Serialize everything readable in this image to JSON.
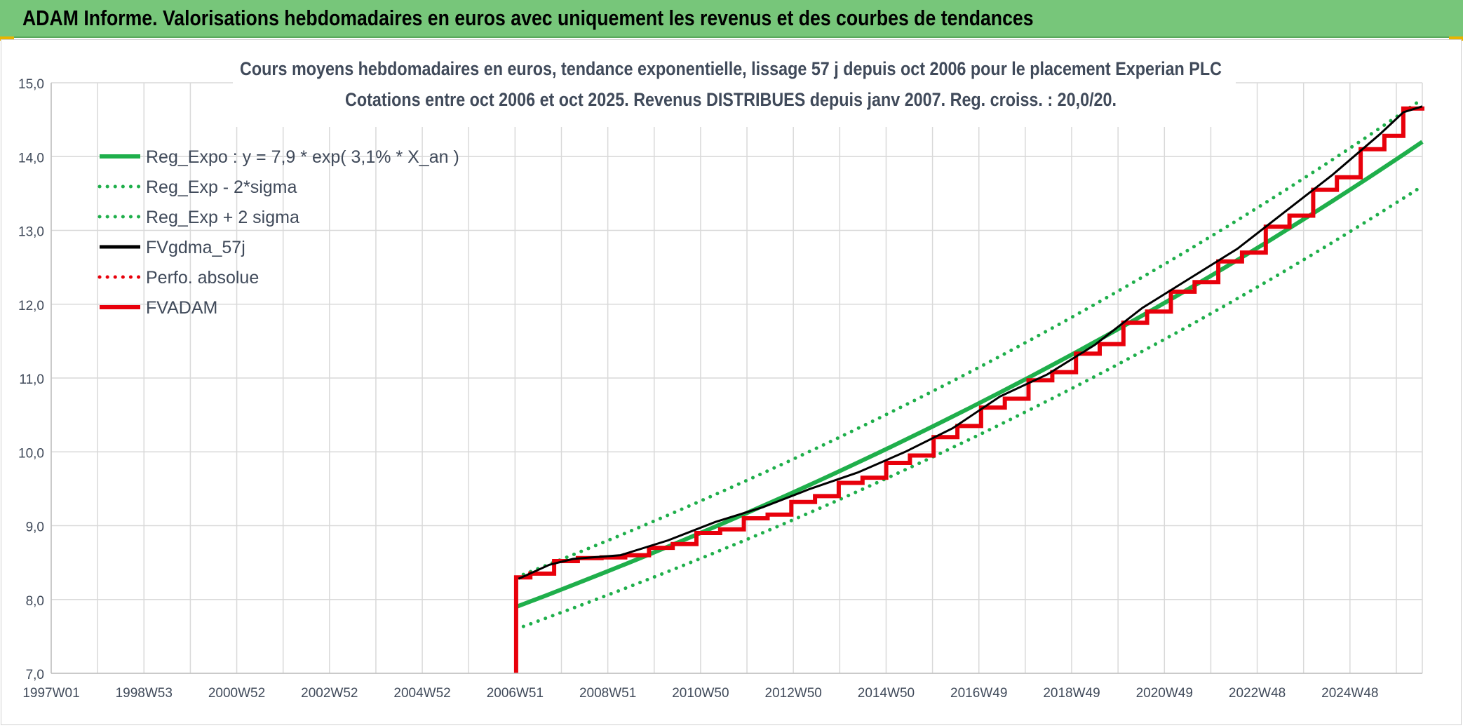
{
  "header": {
    "title": "ADAM Informe. Valorisations hebdomadaires en euros avec uniquement les revenus et des courbes de tendances"
  },
  "chart_data": {
    "type": "line",
    "title": "Cours moyens hebdomadaires en euros, tendance exponentielle, lissage 57 j depuis oct 2006 pour le placement Experian PLC",
    "subtitle": "Cotations entre oct 2006 et oct 2025. Revenus DISTRIBUES depuis janv 2007. Reg. croiss. : 20,0/20.",
    "xlabel": "",
    "ylabel": "",
    "x_ticks": [
      "1997W01",
      "1998W53",
      "2000W52",
      "2002W52",
      "2004W52",
      "2006W51",
      "2008W51",
      "2010W50",
      "2012W50",
      "2014W50",
      "2016W49",
      "2018W49",
      "2020W49",
      "2022W48",
      "2024W48"
    ],
    "x_range": [
      1997.0,
      2025.9
    ],
    "ylim": [
      7.0,
      15.0
    ],
    "y_ticks": [
      "7,0",
      "8,0",
      "9,0",
      "10,0",
      "11,0",
      "12,0",
      "13,0",
      "14,0",
      "15,0"
    ],
    "grid": true,
    "legend_position": "top-left",
    "series": [
      {
        "name": "Reg_Expo : y = 7,9 * exp( 3,1% *  X_an )",
        "color": "#1faf4b",
        "style": "solid",
        "x": [
          2006.8,
          2025.9
        ],
        "y": [
          7.9,
          14.2
        ]
      },
      {
        "name": "Reg_Exp - 2*sigma",
        "color": "#1faf4b",
        "style": "dotted",
        "x": [
          2006.8,
          2025.9
        ],
        "y": [
          7.6,
          13.6
        ]
      },
      {
        "name": "Reg_Exp + 2 sigma",
        "color": "#1faf4b",
        "style": "dotted",
        "x": [
          2006.8,
          2025.9
        ],
        "y": [
          8.3,
          14.78
        ]
      },
      {
        "name": "FVgdma_57j",
        "color": "#000000",
        "style": "solid",
        "x": [
          2006.85,
          2007.5,
          2008.0,
          2009.0,
          2010.0,
          2011.0,
          2012.0,
          2013.0,
          2014.0,
          2015.0,
          2016.0,
          2017.0,
          2018.0,
          2019.0,
          2020.0,
          2021.0,
          2022.0,
          2023.0,
          2024.0,
          2025.0,
          2025.5,
          2025.9
        ],
        "y": [
          8.28,
          8.47,
          8.55,
          8.6,
          8.8,
          9.05,
          9.25,
          9.5,
          9.72,
          10.0,
          10.32,
          10.75,
          11.05,
          11.45,
          11.95,
          12.35,
          12.75,
          13.25,
          13.75,
          14.3,
          14.6,
          14.68
        ]
      },
      {
        "name": "Perfo. absolue",
        "color": "#e8000b",
        "style": "dotted",
        "x": [],
        "y": []
      },
      {
        "name": "FVADAM",
        "color": "#e8000b",
        "style": "step",
        "x": [
          2006.8,
          2006.8,
          2007.1,
          2007.6,
          2008.1,
          2008.6,
          2009.1,
          2009.6,
          2010.1,
          2010.6,
          2011.1,
          2011.6,
          2012.1,
          2012.6,
          2013.1,
          2013.6,
          2014.1,
          2014.6,
          2015.1,
          2015.6,
          2016.1,
          2016.6,
          2017.1,
          2017.6,
          2018.1,
          2018.6,
          2019.1,
          2019.6,
          2020.1,
          2020.6,
          2021.1,
          2021.6,
          2022.1,
          2022.6,
          2023.1,
          2023.6,
          2024.1,
          2024.6,
          2025.1,
          2025.5,
          2025.9
        ],
        "y": [
          7.0,
          8.3,
          8.35,
          8.52,
          8.56,
          8.57,
          8.6,
          8.7,
          8.75,
          8.9,
          8.95,
          9.1,
          9.15,
          9.32,
          9.4,
          9.58,
          9.65,
          9.85,
          9.95,
          10.2,
          10.35,
          10.6,
          10.72,
          10.97,
          11.08,
          11.33,
          11.46,
          11.75,
          11.9,
          12.17,
          12.3,
          12.58,
          12.7,
          13.05,
          13.2,
          13.55,
          13.72,
          14.1,
          14.28,
          14.65,
          14.68
        ]
      }
    ]
  }
}
